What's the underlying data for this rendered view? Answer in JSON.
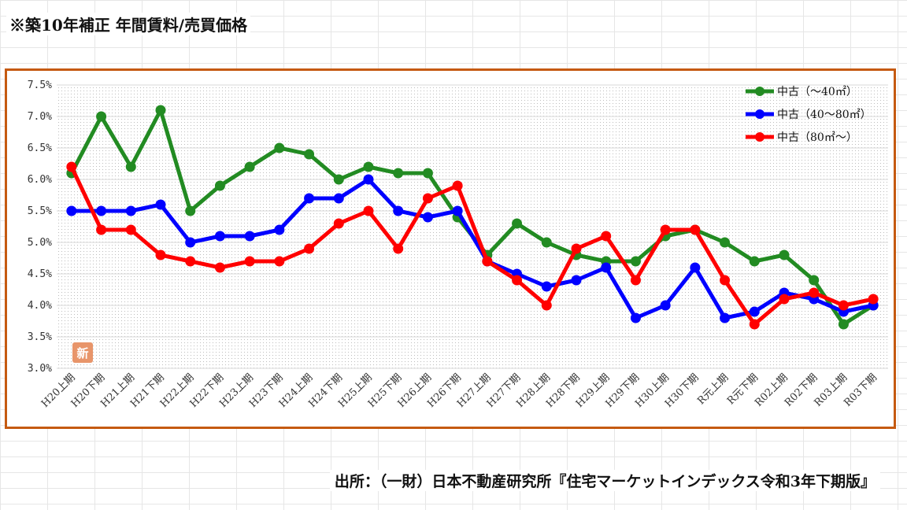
{
  "title": "※築10年補正 年間賃料/売買価格",
  "source": "出所：（一財）日本不動産研究所『住宅マーケットインデックス令和3年下期版』",
  "badge": "新",
  "colors": {
    "frame": "#c55a11",
    "badge": "#e8956a"
  },
  "chart_data": {
    "type": "line",
    "title": "",
    "xlabel": "",
    "ylabel": "",
    "ylim": [
      3.0,
      7.5
    ],
    "y_ticks": [
      "3.0%",
      "3.5%",
      "4.0%",
      "4.5%",
      "5.0%",
      "5.5%",
      "6.0%",
      "6.5%",
      "7.0%",
      "7.5%"
    ],
    "grid": true,
    "legend_position": "top-right",
    "categories": [
      "H20上期",
      "H20下期",
      "H21上期",
      "H21下期",
      "H22上期",
      "H22下期",
      "H23上期",
      "H23下期",
      "H24上期",
      "H24下期",
      "H25上期",
      "H25下期",
      "H26上期",
      "H26下期",
      "H27上期",
      "H27下期",
      "H28上期",
      "H28下期",
      "H29上期",
      "H29下期",
      "H30上期",
      "H30下期",
      "R元上期",
      "R元下期",
      "R02上期",
      "R02下期",
      "R03上期",
      "R03下期"
    ],
    "series": [
      {
        "name": "中古（～40㎡）",
        "color": "#228b22",
        "values": [
          6.1,
          7.0,
          6.2,
          7.1,
          5.5,
          5.9,
          6.2,
          6.5,
          6.4,
          6.0,
          6.2,
          6.1,
          6.1,
          5.4,
          4.8,
          5.3,
          5.0,
          4.8,
          4.7,
          4.7,
          5.1,
          5.2,
          5.0,
          4.7,
          4.8,
          4.4,
          3.7,
          4.0
        ]
      },
      {
        "name": "中古（40～80㎡）",
        "color": "#0000ff",
        "values": [
          5.5,
          5.5,
          5.5,
          5.6,
          5.0,
          5.1,
          5.1,
          5.2,
          5.7,
          5.7,
          6.0,
          5.5,
          5.4,
          5.5,
          4.7,
          4.5,
          4.3,
          4.4,
          4.6,
          3.8,
          4.0,
          4.6,
          3.8,
          3.9,
          4.2,
          4.1,
          3.9,
          4.0
        ]
      },
      {
        "name": "中古（80㎡～）",
        "color": "#ff0000",
        "values": [
          6.2,
          5.2,
          5.2,
          4.8,
          4.7,
          4.6,
          4.7,
          4.7,
          4.9,
          5.3,
          5.5,
          4.9,
          5.7,
          5.9,
          4.7,
          4.4,
          4.0,
          4.9,
          5.1,
          4.4,
          5.2,
          5.2,
          4.4,
          3.7,
          4.1,
          4.2,
          4.0,
          4.1
        ]
      }
    ]
  }
}
